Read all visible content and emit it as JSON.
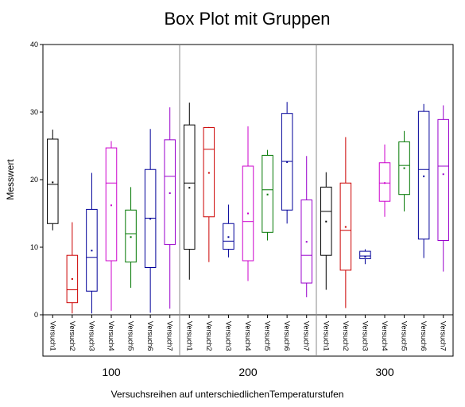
{
  "chart_data": {
    "type": "box",
    "title": "Box Plot mit Gruppen",
    "ylabel": "Messwert",
    "xlabel": "Versuchsreihen auf unterschiedlichenTemperaturstufen",
    "ylim": [
      0,
      40
    ],
    "yticks": [
      "0",
      "10",
      "20",
      "30",
      "40"
    ],
    "ytick_values": [
      0,
      10,
      20,
      30,
      40
    ],
    "categories": [
      "Versuch1",
      "Versuch2",
      "Versuch3",
      "Versuch4",
      "Versuch5",
      "Versuch6",
      "Versuch7"
    ],
    "category_colors": [
      "#000000",
      "#cc0000",
      "#000099",
      "#cc00cc",
      "#007700",
      "#000099",
      "#9900cc"
    ],
    "groups": [
      {
        "name": "100",
        "boxes": [
          {
            "min": 12.5,
            "q1": 13.5,
            "median": 19.3,
            "q3": 26.0,
            "max": 27.4,
            "mean": 19.6
          },
          {
            "min": 0.2,
            "q1": 1.8,
            "median": 3.7,
            "q3": 8.8,
            "max": 13.7,
            "mean": 5.3
          },
          {
            "min": 0.2,
            "q1": 3.5,
            "median": 8.5,
            "q3": 15.6,
            "max": 21.0,
            "mean": 9.5
          },
          {
            "min": 0.6,
            "q1": 8.0,
            "median": 19.5,
            "q3": 24.7,
            "max": 25.7,
            "mean": 16.2
          },
          {
            "min": 4.0,
            "q1": 7.8,
            "median": 12.0,
            "q3": 15.5,
            "max": 18.9,
            "mean": 11.5
          },
          {
            "min": 0.3,
            "q1": 7.0,
            "median": 14.3,
            "q3": 21.5,
            "max": 27.5,
            "mean": 14.2
          },
          {
            "min": 0.9,
            "q1": 10.4,
            "median": 20.5,
            "q3": 25.9,
            "max": 30.7,
            "mean": 18.0
          }
        ]
      },
      {
        "name": "200",
        "boxes": [
          {
            "min": 5.2,
            "q1": 9.7,
            "median": 19.5,
            "q3": 28.1,
            "max": 31.4,
            "mean": 18.8
          },
          {
            "min": 7.8,
            "q1": 14.5,
            "median": 24.5,
            "q3": 27.7,
            "max": 27.8,
            "mean": 21.0
          },
          {
            "min": 8.5,
            "q1": 9.7,
            "median": 10.9,
            "q3": 13.5,
            "max": 16.3,
            "mean": 11.5
          },
          {
            "min": 5.0,
            "q1": 8.0,
            "median": 13.8,
            "q3": 22.0,
            "max": 27.9,
            "mean": 15.0
          },
          {
            "min": 11.0,
            "q1": 12.2,
            "median": 18.5,
            "q3": 23.6,
            "max": 24.4,
            "mean": 17.8
          },
          {
            "min": 13.5,
            "q1": 15.5,
            "median": 22.7,
            "q3": 29.8,
            "max": 31.5,
            "mean": 22.6
          },
          {
            "min": 2.6,
            "q1": 4.7,
            "median": 8.8,
            "q3": 17.0,
            "max": 23.5,
            "mean": 10.8
          }
        ]
      },
      {
        "name": "300",
        "boxes": [
          {
            "min": 3.7,
            "q1": 8.8,
            "median": 15.3,
            "q3": 18.9,
            "max": 21.1,
            "mean": 13.8
          },
          {
            "min": 1.0,
            "q1": 6.6,
            "median": 12.5,
            "q3": 19.5,
            "max": 26.3,
            "mean": 13.0
          },
          {
            "min": 7.5,
            "q1": 8.3,
            "median": 8.7,
            "q3": 9.4,
            "max": 9.7,
            "mean": 8.6
          },
          {
            "min": 14.5,
            "q1": 16.8,
            "median": 19.5,
            "q3": 22.5,
            "max": 25.2,
            "mean": 19.5
          },
          {
            "min": 15.3,
            "q1": 17.8,
            "median": 22.1,
            "q3": 25.6,
            "max": 27.2,
            "mean": 21.7
          },
          {
            "min": 8.4,
            "q1": 11.2,
            "median": 21.5,
            "q3": 30.1,
            "max": 31.2,
            "mean": 20.5
          },
          {
            "min": 6.4,
            "q1": 11.0,
            "median": 22.0,
            "q3": 28.9,
            "max": 31.0,
            "mean": 20.8
          }
        ]
      }
    ]
  }
}
